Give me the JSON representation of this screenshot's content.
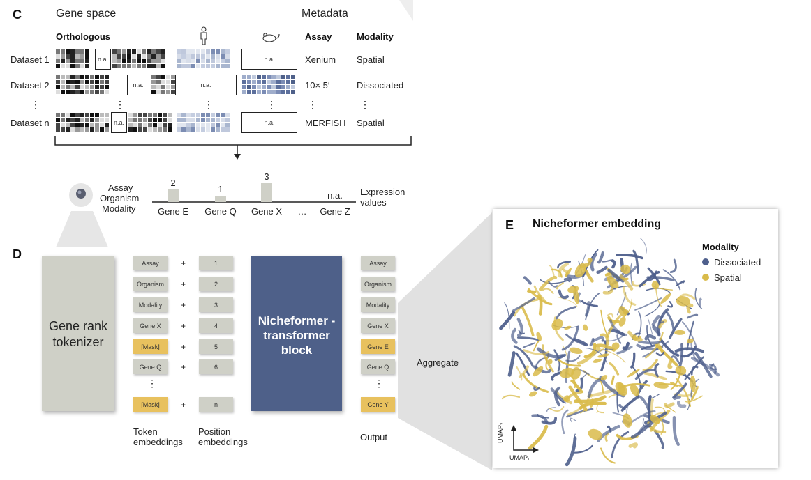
{
  "panel_c": {
    "letter": "C",
    "gene_space": "Gene space",
    "metadata": "Metadata",
    "orthologous": "Orthologous",
    "assay_header": "Assay",
    "modality_header": "Modality",
    "na": "n.a.",
    "datasets": [
      {
        "label": "Dataset 1",
        "assay": "Xenium",
        "modality": "Spatial"
      },
      {
        "label": "Dataset 2",
        "assay": "10× 5′",
        "modality": "Dissociated"
      },
      {
        "label": "Dataset n",
        "assay": "MERFISH",
        "modality": "Spatial"
      }
    ],
    "ellipsis": "⋮",
    "expression": {
      "meta_labels": [
        "Assay",
        "Organism",
        "Modality"
      ],
      "genes": [
        {
          "name": "Gene E",
          "value": "2",
          "height": 2
        },
        {
          "name": "Gene Q",
          "value": "1",
          "height": 1
        },
        {
          "name": "Gene X",
          "value": "3",
          "height": 3
        },
        {
          "name": "…",
          "value": "",
          "height": 0
        },
        {
          "name": "Gene Z",
          "value": "n.a.",
          "height": 0
        }
      ],
      "expression_label_1": "Expression",
      "expression_label_2": "values"
    }
  },
  "panel_d": {
    "letter": "D",
    "tokenizer_1": "Gene rank",
    "tokenizer_2": "tokenizer",
    "tokens": [
      "Assay",
      "Organism",
      "Modality",
      "Gene X",
      "[Mask]",
      "Gene Q",
      "⋮",
      "[Mask]"
    ],
    "mask_flags": [
      false,
      false,
      false,
      false,
      true,
      false,
      false,
      true
    ],
    "positions": [
      "1",
      "2",
      "3",
      "4",
      "5",
      "6",
      "",
      "n"
    ],
    "outputs": [
      "Assay",
      "Organism",
      "Modality",
      "Gene X",
      "Gene E",
      "Gene Q",
      "⋮",
      "Gene Y"
    ],
    "output_mask_flags": [
      false,
      false,
      false,
      false,
      true,
      false,
      false,
      true
    ],
    "transformer_1": "Nicheformer -",
    "transformer_2": "transformer",
    "transformer_3": "block",
    "token_emb_1": "Token",
    "token_emb_2": "embeddings",
    "pos_emb_1": "Position",
    "pos_emb_2": "embeddings",
    "output_label": "Output",
    "aggregate": "Aggregate",
    "plus": "+"
  },
  "panel_e": {
    "letter": "E",
    "title": "Nicheformer embedding",
    "legend_title": "Modality",
    "legend": [
      {
        "name": "Dissociated",
        "color": "#4e5f8c"
      },
      {
        "name": "Spatial",
        "color": "#d9bb4a"
      }
    ],
    "axis_x": "UMAP₁",
    "axis_y": "UMAP₂"
  },
  "colors": {
    "gray_token": "#cfd0c7",
    "mask_yellow": "#e8c15e",
    "transformer_blue": "#4e6089",
    "dissociated": "#4e5f8c",
    "spatial": "#d9bb4a"
  }
}
